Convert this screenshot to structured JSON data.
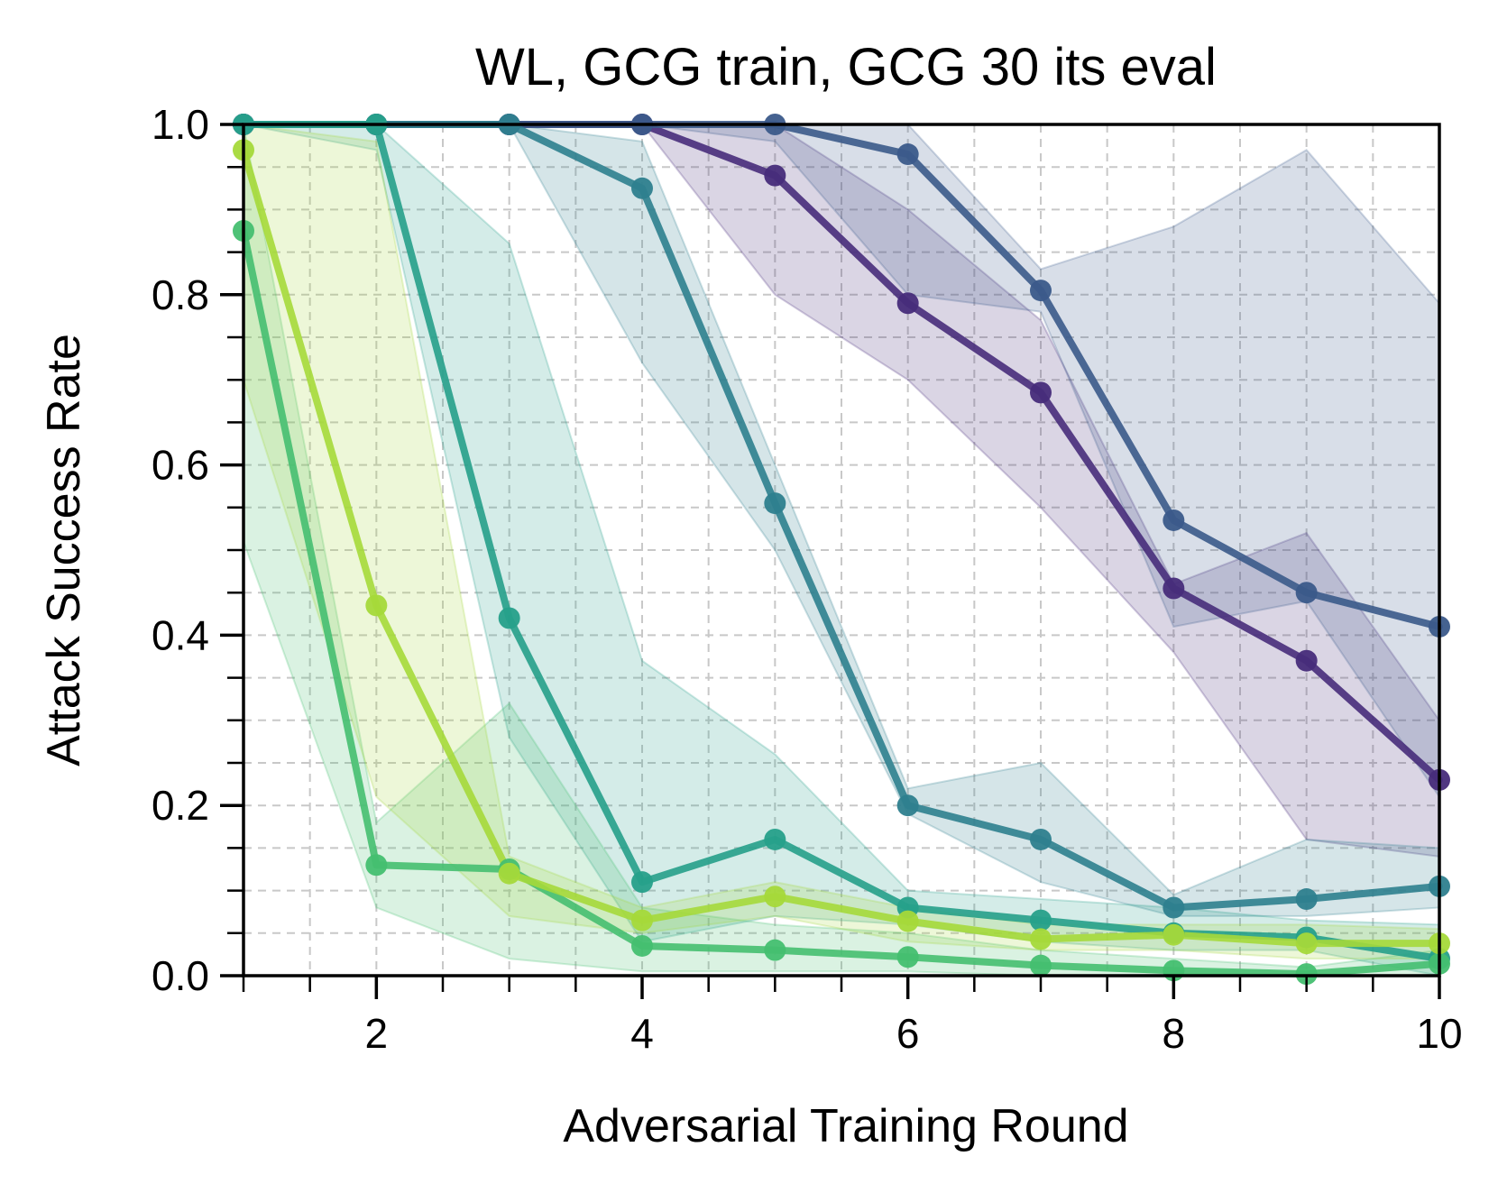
{
  "chart_data": {
    "type": "line",
    "title": "WL, GCG train, GCG 30 its eval",
    "xlabel": "Adversarial Training Round",
    "ylabel": "Attack Success Rate",
    "xlim": [
      1,
      10
    ],
    "ylim": [
      0,
      1
    ],
    "xticks": [
      2,
      4,
      6,
      8,
      10
    ],
    "yticks": [
      0.0,
      0.2,
      0.4,
      0.6,
      0.8,
      1.0
    ],
    "ytick_labels": [
      "0.0",
      "0.2",
      "0.4",
      "0.6",
      "0.8",
      "1.0"
    ],
    "grid": true,
    "legend": false,
    "x": [
      1,
      2,
      3,
      4,
      5,
      6,
      7,
      8,
      9,
      10
    ],
    "series": [
      {
        "color": "#472c7a",
        "values": [
          1.0,
          1.0,
          1.0,
          1.0,
          0.94,
          0.79,
          0.685,
          0.455,
          0.37,
          0.23
        ],
        "band_low": [
          1.0,
          1.0,
          1.0,
          1.0,
          0.8,
          0.7,
          0.55,
          0.38,
          0.16,
          0.14
        ],
        "band_high": [
          1.0,
          1.0,
          1.0,
          1.0,
          1.0,
          0.9,
          0.77,
          0.46,
          0.52,
          0.3
        ]
      },
      {
        "color": "#3b5a8a",
        "values": [
          1.0,
          1.0,
          1.0,
          1.0,
          1.0,
          0.965,
          0.805,
          0.535,
          0.45,
          0.41
        ],
        "band_low": [
          1.0,
          1.0,
          1.0,
          1.0,
          0.98,
          0.8,
          0.78,
          0.41,
          0.44,
          0.21
        ],
        "band_high": [
          1.0,
          1.0,
          1.0,
          1.0,
          1.0,
          1.0,
          0.83,
          0.88,
          0.97,
          0.79
        ]
      },
      {
        "color": "#2e7f8e",
        "values": [
          1.0,
          1.0,
          1.0,
          0.925,
          0.555,
          0.2,
          0.16,
          0.08,
          0.09,
          0.105
        ],
        "band_low": [
          1.0,
          1.0,
          1.0,
          0.72,
          0.5,
          0.19,
          0.11,
          0.07,
          0.07,
          0.08
        ],
        "band_high": [
          1.0,
          1.0,
          1.0,
          0.98,
          0.6,
          0.22,
          0.25,
          0.095,
          0.16,
          0.15
        ]
      },
      {
        "color": "#26a08a",
        "values": [
          1.0,
          1.0,
          0.42,
          0.11,
          0.16,
          0.08,
          0.065,
          0.05,
          0.045,
          0.02
        ],
        "band_low": [
          1.0,
          0.97,
          0.28,
          0.04,
          0.07,
          0.06,
          0.04,
          0.03,
          0.03,
          0.0
        ],
        "band_high": [
          1.0,
          1.0,
          0.86,
          0.37,
          0.26,
          0.1,
          0.09,
          0.08,
          0.065,
          0.06
        ]
      },
      {
        "color": "#45bf70",
        "values": [
          0.875,
          0.13,
          0.125,
          0.035,
          0.03,
          0.022,
          0.012,
          0.006,
          0.002,
          0.014
        ],
        "band_low": [
          0.51,
          0.08,
          0.02,
          0.005,
          0.005,
          0.005,
          0.0,
          0.0,
          0.0,
          0.0
        ],
        "band_high": [
          1.0,
          0.18,
          0.32,
          0.08,
          0.06,
          0.05,
          0.03,
          0.02,
          0.01,
          0.03
        ]
      },
      {
        "color": "#a5d93a",
        "values": [
          0.97,
          0.435,
          0.12,
          0.065,
          0.093,
          0.064,
          0.043,
          0.048,
          0.038,
          0.038
        ],
        "band_low": [
          0.7,
          0.21,
          0.07,
          0.05,
          0.07,
          0.04,
          0.03,
          0.03,
          0.02,
          0.02
        ],
        "band_high": [
          1.0,
          0.98,
          0.14,
          0.08,
          0.11,
          0.08,
          0.06,
          0.06,
          0.06,
          0.055
        ]
      }
    ]
  }
}
